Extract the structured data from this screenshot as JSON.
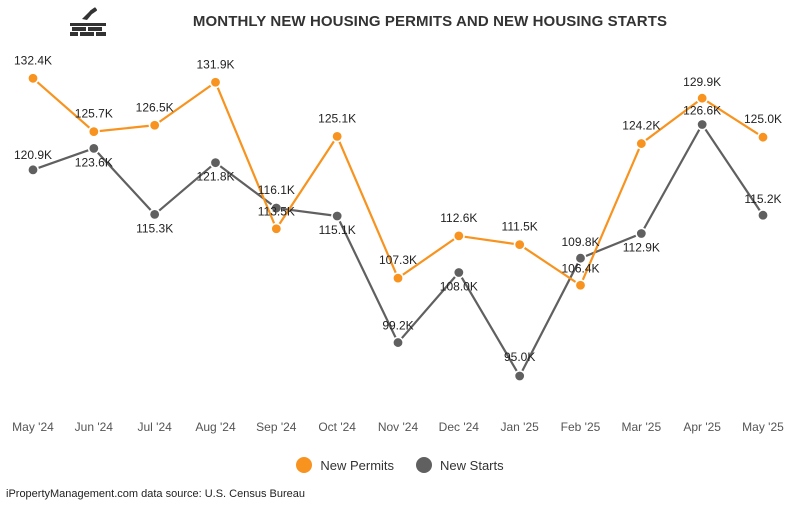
{
  "header": {
    "title": "MONTHLY NEW HOUSING PERMITS AND NEW HOUSING STARTS",
    "logo_icon": "brick-wall-trowel-icon"
  },
  "colors": {
    "permits": "#f7931e",
    "starts": "#606060",
    "background": "#ffffff"
  },
  "chart_data": {
    "type": "line",
    "title": "MONTHLY NEW HOUSING PERMITS AND NEW HOUSING STARTS",
    "xlabel": "",
    "ylabel": "",
    "ylim": [
      92,
      136
    ],
    "grid": false,
    "legend_position": "bottom-center",
    "categories": [
      "May '24",
      "Jun '24",
      "Jul '24",
      "Aug '24",
      "Sep '24",
      "Oct '24",
      "Nov '24",
      "Dec '24",
      "Jan '25",
      "Feb '25",
      "Mar '25",
      "Apr '25",
      "May '25"
    ],
    "series": [
      {
        "name": "New Permits",
        "values": [
          132.4,
          125.7,
          126.5,
          131.9,
          113.5,
          125.1,
          107.3,
          112.6,
          111.5,
          106.4,
          124.2,
          129.9,
          125.0
        ],
        "labels": [
          "132.4K",
          "125.7K",
          "126.5K",
          "131.9K",
          "113.5K",
          "125.1K",
          "107.3K",
          "112.6K",
          "111.5K",
          "106.4K",
          "124.2K",
          "129.9K",
          "125.0K"
        ]
      },
      {
        "name": "New Starts",
        "values": [
          120.9,
          123.6,
          115.3,
          121.8,
          116.1,
          115.1,
          99.2,
          108.0,
          95.0,
          109.8,
          112.9,
          126.6,
          115.2
        ],
        "labels": [
          "120.9K",
          "123.6K",
          "115.3K",
          "121.8K",
          "116.1K",
          "115.1K",
          "99.2K",
          "108.0K",
          "95.0K",
          "109.8K",
          "112.9K",
          "126.6K",
          "115.2K"
        ]
      }
    ]
  },
  "legend": {
    "items": [
      {
        "label": "New Permits"
      },
      {
        "label": "New Starts"
      }
    ]
  },
  "footer": {
    "source": "iPropertyManagement.com data source: U.S. Census Bureau"
  }
}
